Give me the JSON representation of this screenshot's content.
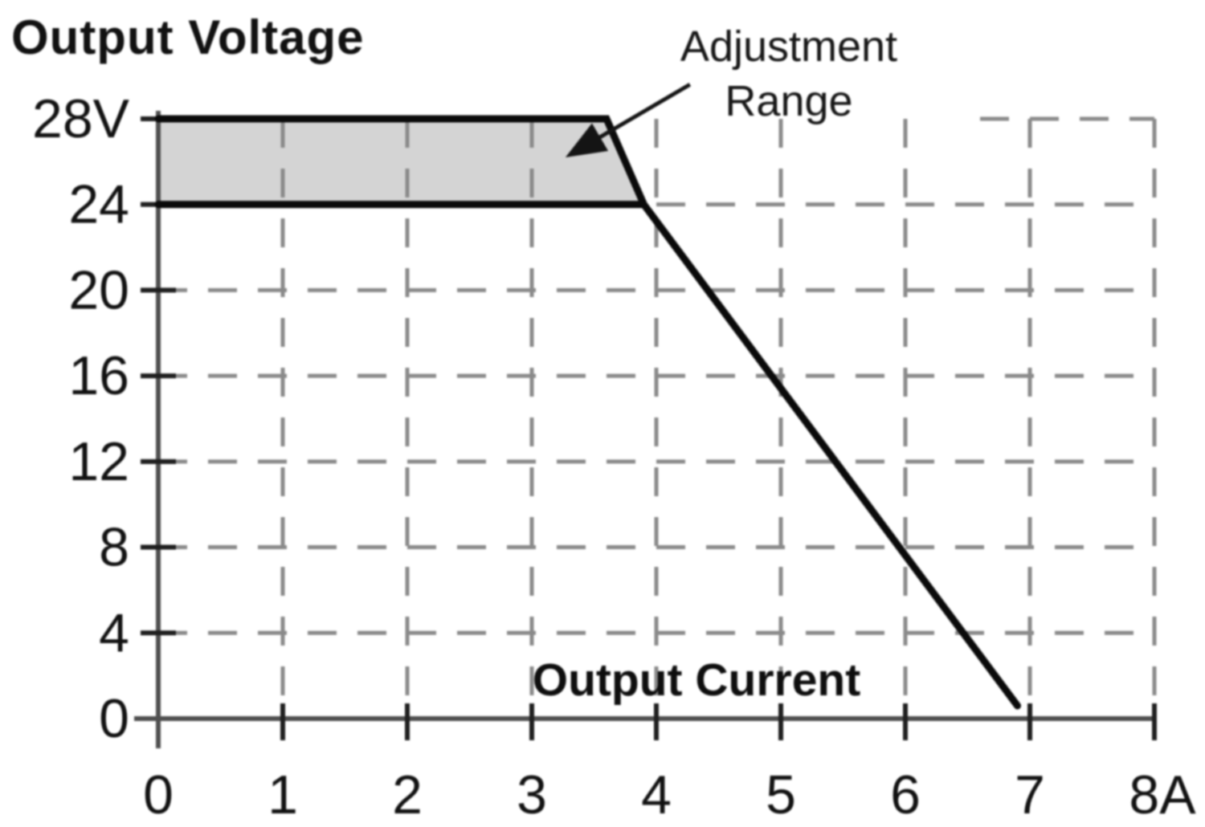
{
  "chart_data": {
    "type": "line",
    "title": "",
    "ylabel": "Output Voltage",
    "xlabel": "Output Current",
    "y_unit": "V",
    "x_unit": "A",
    "xlim": [
      0,
      8
    ],
    "ylim": [
      0,
      28
    ],
    "x_ticks": [
      0,
      1,
      2,
      3,
      4,
      5,
      6,
      7,
      8
    ],
    "x_tick_labels": [
      "0",
      "1",
      "2",
      "3",
      "4",
      "5",
      "6",
      "7",
      "8A"
    ],
    "y_ticks": [
      0,
      4,
      8,
      12,
      16,
      20,
      24,
      28
    ],
    "y_tick_labels": [
      "0",
      "4",
      "8",
      "12",
      "16",
      "20",
      "24",
      "28V"
    ],
    "grid": {
      "style": "dashed",
      "vertical_lines_x": [
        1,
        2,
        3,
        4,
        5,
        6,
        7,
        8
      ],
      "horizontal_lines": [
        {
          "y": 4,
          "x_from": 0,
          "x_to": 8
        },
        {
          "y": 8,
          "x_from": 0,
          "x_to": 8
        },
        {
          "y": 12,
          "x_from": 0,
          "x_to": 8
        },
        {
          "y": 16,
          "x_from": 0,
          "x_to": 8
        },
        {
          "y": 20,
          "x_from": 0,
          "x_to": 8
        },
        {
          "y": 24,
          "x_from": 4.0,
          "x_to": 8
        },
        {
          "y": 28,
          "x_from": 6.6,
          "x_to": 8
        }
      ]
    },
    "series": [
      {
        "name": "voltage-upper-limit-28v",
        "points": [
          [
            0,
            28
          ],
          [
            3.6,
            28
          ],
          [
            3.9,
            24
          ]
        ],
        "width": 9
      },
      {
        "name": "voltage-rated-24v",
        "points": [
          [
            0,
            24
          ],
          [
            3.9,
            24
          ]
        ],
        "width": 9
      },
      {
        "name": "overload-droop",
        "points": [
          [
            3.9,
            24
          ],
          [
            6.9,
            0.6
          ]
        ],
        "width": 9
      }
    ],
    "shaded_band": {
      "name": "adjustment-range-band",
      "polygon": [
        [
          0,
          28
        ],
        [
          3.6,
          28
        ],
        [
          3.9,
          24
        ],
        [
          0,
          24
        ]
      ],
      "fill": "#d4d4d4"
    },
    "annotation": {
      "lines": [
        "Adjustment",
        "Range"
      ],
      "arrow_from": [
        4.27,
        29.6
      ],
      "arrow_to": [
        3.27,
        26.2
      ]
    },
    "legend": null,
    "colors": {
      "curve": "#0a0a0a",
      "grid": "#8a8a8a",
      "axis": "#4f4f4f",
      "tick": "#1f1f1f",
      "text": "#111111",
      "band": "#d4d4d4",
      "background": "#ffffff"
    }
  }
}
